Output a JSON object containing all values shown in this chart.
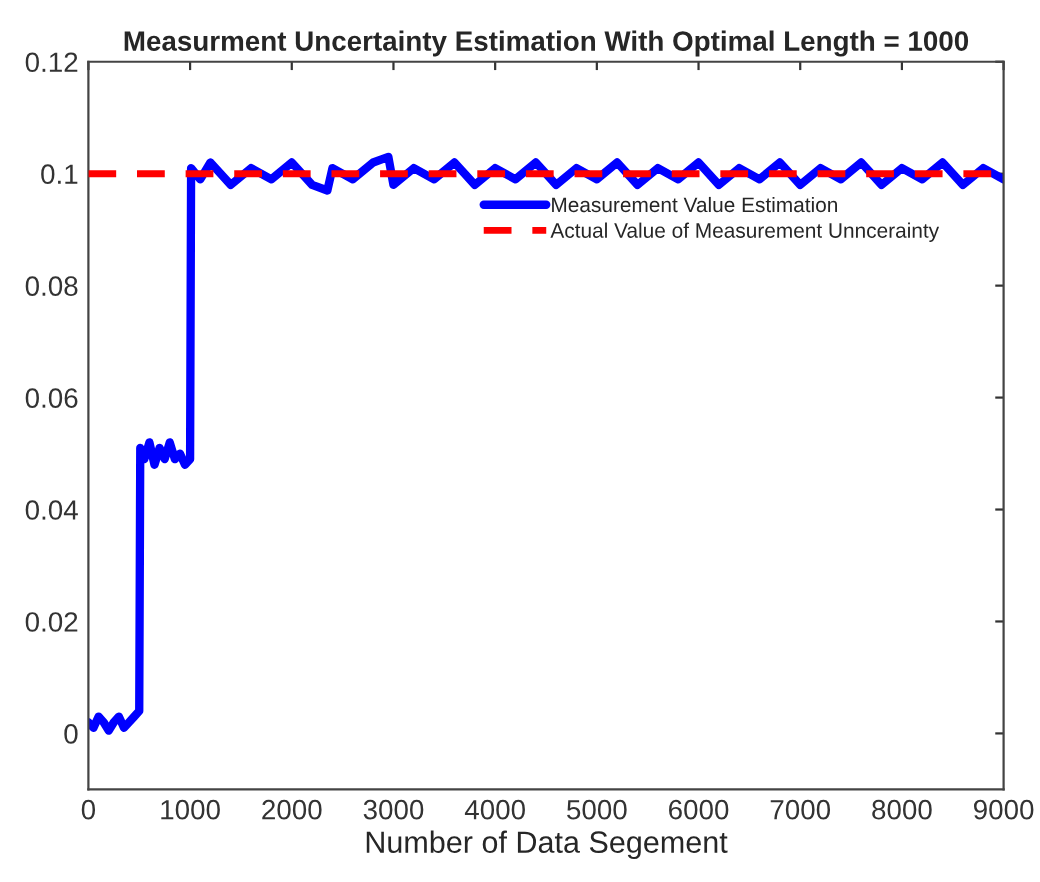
{
  "chart_data": {
    "type": "line",
    "title": "Measurment Uncertainty Estimation With Optimal Length = 1000",
    "xlabel": "Number of Data Segement",
    "series": [
      {
        "name": "Measurement Value Estimation",
        "color": "#0000ff",
        "line_style": "solid",
        "x": [
          0,
          50,
          100,
          150,
          200,
          250,
          300,
          350,
          400,
          450,
          500,
          510,
          550,
          600,
          650,
          700,
          750,
          800,
          850,
          900,
          950,
          1000,
          1010,
          1100,
          1200,
          1400,
          1600,
          1800,
          2000,
          2200,
          2350,
          2400,
          2600,
          2800,
          2950,
          3000,
          3200,
          3400,
          3600,
          3800,
          4000,
          4200,
          4400,
          4600,
          4800,
          5000,
          5200,
          5400,
          5600,
          5800,
          6000,
          6200,
          6400,
          6600,
          6800,
          7000,
          7200,
          7400,
          7600,
          7800,
          8000,
          8200,
          8400,
          8600,
          8800,
          9000
        ],
        "values": [
          0.002,
          0.001,
          0.003,
          0.002,
          0.0005,
          0.002,
          0.003,
          0.001,
          0.002,
          0.003,
          0.004,
          0.051,
          0.049,
          0.052,
          0.048,
          0.051,
          0.049,
          0.052,
          0.049,
          0.05,
          0.048,
          0.049,
          0.101,
          0.099,
          0.102,
          0.098,
          0.101,
          0.099,
          0.102,
          0.098,
          0.097,
          0.101,
          0.099,
          0.102,
          0.103,
          0.098,
          0.101,
          0.099,
          0.102,
          0.098,
          0.101,
          0.099,
          0.102,
          0.098,
          0.101,
          0.099,
          0.102,
          0.098,
          0.101,
          0.099,
          0.102,
          0.098,
          0.101,
          0.099,
          0.102,
          0.098,
          0.101,
          0.099,
          0.102,
          0.098,
          0.101,
          0.099,
          0.102,
          0.098,
          0.101,
          0.099
        ]
      },
      {
        "name": "Actual Value of Measurement Unncerainty",
        "color": "#ff0000",
        "line_style": "dashed",
        "x": [
          0,
          9000
        ],
        "values": [
          0.1,
          0.1
        ]
      }
    ],
    "xlim": [
      0,
      9000
    ],
    "xticks": [
      0,
      1000,
      2000,
      3000,
      4000,
      5000,
      6000,
      7000,
      8000,
      9000
    ],
    "ylim": [
      -0.01,
      0.12
    ],
    "yticks": [
      0,
      0.02,
      0.04,
      0.06,
      0.08,
      0.1,
      0.12
    ],
    "grid": false,
    "legend": "top right",
    "marker": "none"
  }
}
